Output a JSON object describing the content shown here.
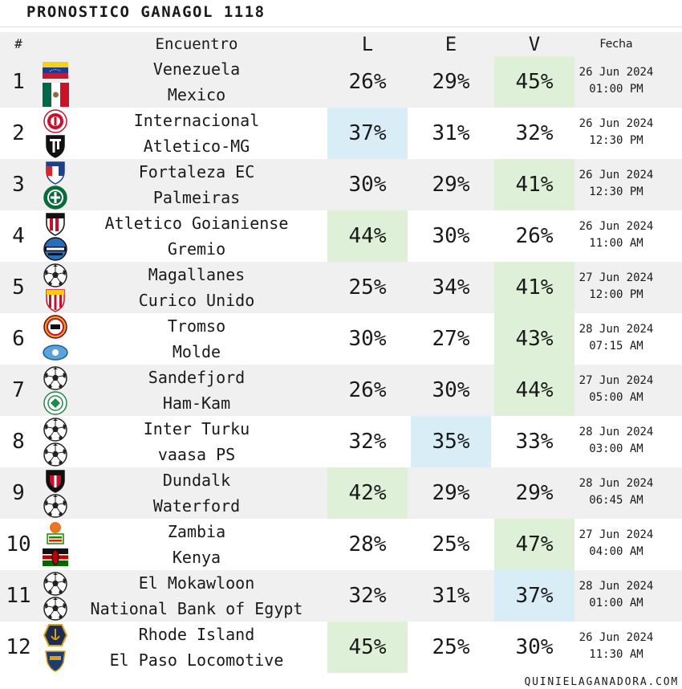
{
  "title": "PRONOSTICO GANAGOL 1118",
  "header": {
    "num": "#",
    "encuentro": "Encuentro",
    "l": "L",
    "e": "E",
    "v": "V",
    "fecha": "Fecha"
  },
  "colors": {
    "green": "#dff0d8",
    "blue": "#d9edf7",
    "alt_row": "#f0f0f0"
  },
  "rows": [
    {
      "num": "1",
      "home": "Venezuela",
      "away": "Mexico",
      "l": "26%",
      "e": "29%",
      "v": "45%",
      "hl": "v",
      "hl_color": "green",
      "date": "26 Jun 2024",
      "time": "01:00 PM",
      "home_logo": "venezuela-flag-icon",
      "away_logo": "mexico-flag-icon"
    },
    {
      "num": "2",
      "home": "Internacional",
      "away": "Atletico-MG",
      "l": "37%",
      "e": "31%",
      "v": "32%",
      "hl": "l",
      "hl_color": "blue",
      "date": "26 Jun 2024",
      "time": "12:30 PM",
      "home_logo": "internacional-crest-icon",
      "away_logo": "atletico-mg-crest-icon"
    },
    {
      "num": "3",
      "home": "Fortaleza EC",
      "away": "Palmeiras",
      "l": "30%",
      "e": "29%",
      "v": "41%",
      "hl": "v",
      "hl_color": "green",
      "date": "26 Jun 2024",
      "time": "12:30 PM",
      "home_logo": "fortaleza-crest-icon",
      "away_logo": "palmeiras-crest-icon"
    },
    {
      "num": "4",
      "home": "Atletico Goianiense",
      "away": "Gremio",
      "l": "44%",
      "e": "30%",
      "v": "26%",
      "hl": "l",
      "hl_color": "green",
      "date": "26 Jun 2024",
      "time": "11:00 AM",
      "home_logo": "atletico-goianiense-crest-icon",
      "away_logo": "gremio-crest-icon"
    },
    {
      "num": "5",
      "home": "Magallanes",
      "away": "Curico Unido",
      "l": "25%",
      "e": "34%",
      "v": "41%",
      "hl": "v",
      "hl_color": "green",
      "date": "27 Jun 2024",
      "time": "12:00 PM",
      "home_logo": "soccer-ball-icon",
      "away_logo": "curico-unido-crest-icon"
    },
    {
      "num": "6",
      "home": "Tromso",
      "away": "Molde",
      "l": "30%",
      "e": "27%",
      "v": "43%",
      "hl": "v",
      "hl_color": "green",
      "date": "28 Jun 2024",
      "time": "07:15 AM",
      "home_logo": "tromso-crest-icon",
      "away_logo": "molde-crest-icon"
    },
    {
      "num": "7",
      "home": "Sandefjord",
      "away": "Ham-Kam",
      "l": "26%",
      "e": "30%",
      "v": "44%",
      "hl": "v",
      "hl_color": "green",
      "date": "27 Jun 2024",
      "time": "05:00 AM",
      "home_logo": "soccer-ball-icon",
      "away_logo": "ham-kam-crest-icon"
    },
    {
      "num": "8",
      "home": "Inter Turku",
      "away": "vaasa PS",
      "l": "32%",
      "e": "35%",
      "v": "33%",
      "hl": "e",
      "hl_color": "blue",
      "date": "28 Jun 2024",
      "time": "03:00 AM",
      "home_logo": "soccer-ball-icon",
      "away_logo": "soccer-ball-icon"
    },
    {
      "num": "9",
      "home": "Dundalk",
      "away": "Waterford",
      "l": "42%",
      "e": "29%",
      "v": "29%",
      "hl": "l",
      "hl_color": "green",
      "date": "28 Jun 2024",
      "time": "06:45 AM",
      "home_logo": "dundalk-crest-icon",
      "away_logo": "soccer-ball-icon"
    },
    {
      "num": "10",
      "home": "Zambia",
      "away": "Kenya",
      "l": "28%",
      "e": "25%",
      "v": "47%",
      "hl": "v",
      "hl_color": "green",
      "date": "27 Jun 2024",
      "time": "04:00 AM",
      "home_logo": "zambia-crest-icon",
      "away_logo": "kenya-flag-icon"
    },
    {
      "num": "11",
      "home": "El Mokawloon",
      "away": "National Bank of Egypt",
      "l": "32%",
      "e": "31%",
      "v": "37%",
      "hl": "v",
      "hl_color": "blue",
      "date": "28 Jun 2024",
      "time": "01:00 AM",
      "home_logo": "soccer-ball-icon",
      "away_logo": "soccer-ball-icon"
    },
    {
      "num": "12",
      "home": "Rhode Island",
      "away": "El Paso Locomotive",
      "l": "45%",
      "e": "25%",
      "v": "30%",
      "hl": "l",
      "hl_color": "green",
      "date": "26 Jun 2024",
      "time": "11:30 AM",
      "home_logo": "rhode-island-crest-icon",
      "away_logo": "el-paso-locomotive-crest-icon"
    }
  ],
  "footer": "QUINIELAGANADORA.COM"
}
